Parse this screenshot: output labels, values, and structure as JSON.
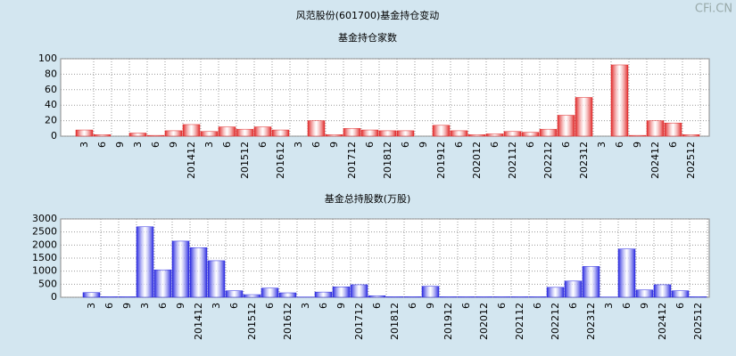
{
  "title": "风范股份(601700)基金持仓变动",
  "watermark": "CFi.CN",
  "chart_data": [
    {
      "type": "bar",
      "title": "基金持仓家数",
      "color": "#e02828",
      "grid": true,
      "categories": [
        "3",
        "6",
        "9",
        "3",
        "6",
        "9",
        "201412",
        "3",
        "6",
        "201512",
        "6",
        "201612",
        "3",
        "6",
        "9",
        "201712",
        "6",
        "201812",
        "6",
        "9",
        "201912",
        "6",
        "202012",
        "6",
        "202112",
        "6",
        "202212",
        "6",
        "202312",
        "3",
        "6",
        "9",
        "202412",
        "6",
        "202512"
      ],
      "values": [
        8,
        2,
        0,
        4,
        1,
        7,
        15,
        6,
        12,
        9,
        12,
        8,
        0,
        20,
        2,
        10,
        8,
        7,
        7,
        0,
        14,
        7,
        2,
        3,
        6,
        5,
        9,
        27,
        50,
        0,
        92,
        1,
        20,
        17,
        2
      ],
      "ylim": [
        0,
        100
      ],
      "yticks": [
        0,
        20,
        40,
        60,
        80,
        100
      ]
    },
    {
      "type": "bar",
      "title": "基金总持股数(万股)",
      "color": "#2828e0",
      "grid": true,
      "categories": [
        "3",
        "6",
        "9",
        "3",
        "6",
        "9",
        "201412",
        "3",
        "6",
        "201512",
        "6",
        "201612",
        "3",
        "6",
        "9",
        "201712",
        "6",
        "201812",
        "6",
        "9",
        "201912",
        "6",
        "202012",
        "6",
        "202112",
        "6",
        "202212",
        "6",
        "202312",
        "3",
        "6",
        "9",
        "202412",
        "6",
        "202512"
      ],
      "values": [
        180,
        20,
        20,
        2700,
        1050,
        2150,
        1900,
        1400,
        250,
        100,
        350,
        170,
        10,
        200,
        400,
        480,
        60,
        20,
        20,
        420,
        20,
        20,
        20,
        20,
        20,
        20,
        380,
        620,
        1180,
        10,
        1850,
        280,
        480,
        250,
        20
      ],
      "ylim": [
        0,
        3000
      ],
      "yticks": [
        0,
        500,
        1000,
        1500,
        2000,
        2500,
        3000
      ]
    }
  ]
}
